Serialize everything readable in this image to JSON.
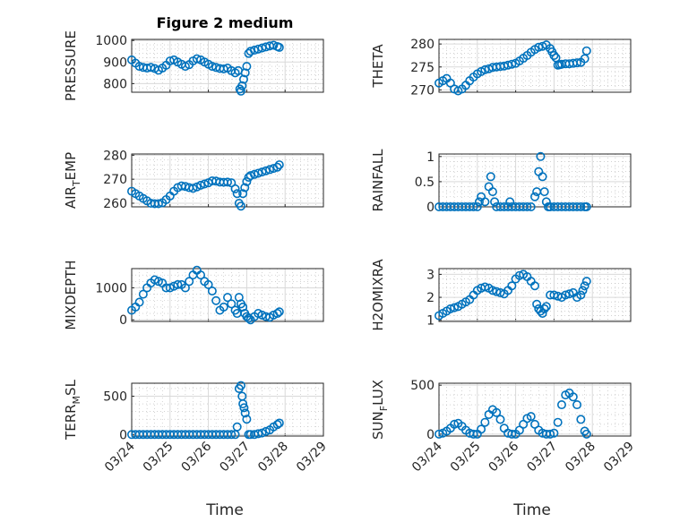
{
  "figure": {
    "title": "Figure 2 medium",
    "marker_color": "#0072bd",
    "x_label": "Time",
    "x_ticks": [
      "03/24",
      "03/25",
      "03/26",
      "03/27",
      "03/28",
      "03/29"
    ]
  },
  "chart_data": [
    {
      "type": "scatter",
      "ylabel": "PRESSURE",
      "xlim": [
        0,
        5
      ],
      "ylim": [
        760,
        1005
      ],
      "yticks": [
        800,
        900,
        1000
      ],
      "x": [
        0,
        0.1,
        0.2,
        0.3,
        0.4,
        0.5,
        0.6,
        0.7,
        0.8,
        0.9,
        1,
        1.1,
        1.2,
        1.3,
        1.4,
        1.5,
        1.6,
        1.7,
        1.8,
        1.9,
        2,
        2.1,
        2.2,
        2.3,
        2.4,
        2.5,
        2.6,
        2.7,
        2.78,
        2.82,
        2.85,
        2.88,
        2.92,
        2.96,
        3,
        3.05,
        3.1,
        3.2,
        3.3,
        3.4,
        3.5,
        3.6,
        3.7,
        3.8,
        3.85
      ],
      "y": [
        910,
        895,
        880,
        875,
        872,
        875,
        870,
        862,
        872,
        885,
        905,
        910,
        900,
        890,
        880,
        888,
        905,
        915,
        910,
        900,
        890,
        880,
        875,
        870,
        868,
        872,
        860,
        850,
        860,
        775,
        765,
        790,
        820,
        850,
        880,
        940,
        950,
        955,
        960,
        965,
        970,
        975,
        978,
        972,
        968
      ]
    },
    {
      "type": "scatter",
      "ylabel": "THETA",
      "xlim": [
        0,
        5
      ],
      "ylim": [
        269.5,
        281
      ],
      "yticks": [
        270,
        275,
        280
      ],
      "x": [
        0,
        0.1,
        0.2,
        0.3,
        0.4,
        0.5,
        0.6,
        0.7,
        0.8,
        0.9,
        1,
        1.1,
        1.2,
        1.3,
        1.4,
        1.5,
        1.6,
        1.7,
        1.8,
        1.9,
        2,
        2.1,
        2.2,
        2.3,
        2.4,
        2.5,
        2.6,
        2.7,
        2.8,
        2.9,
        2.95,
        3,
        3.05,
        3.1,
        3.15,
        3.2,
        3.3,
        3.4,
        3.5,
        3.6,
        3.7,
        3.8,
        3.85
      ],
      "y": [
        271.5,
        272,
        272.5,
        271.5,
        270.2,
        269.8,
        270.2,
        271,
        272,
        272.8,
        273.5,
        274,
        274.4,
        274.6,
        274.9,
        275,
        275.1,
        275.2,
        275.4,
        275.6,
        275.8,
        276.3,
        276.9,
        277.5,
        278.2,
        278.8,
        279.3,
        279.5,
        279.8,
        279,
        278.3,
        277.5,
        277,
        275.4,
        275.5,
        275.6,
        275.7,
        275.7,
        275.8,
        275.9,
        276,
        276.8,
        278.5
      ]
    },
    {
      "type": "scatter",
      "ylabel": "AIR_TEMP",
      "xlim": [
        0,
        5
      ],
      "ylim": [
        258.5,
        280.5
      ],
      "yticks": [
        260,
        270,
        280
      ],
      "x": [
        0,
        0.1,
        0.2,
        0.3,
        0.4,
        0.5,
        0.6,
        0.7,
        0.8,
        0.9,
        1,
        1.1,
        1.2,
        1.3,
        1.4,
        1.5,
        1.6,
        1.7,
        1.8,
        1.9,
        2,
        2.1,
        2.2,
        2.3,
        2.4,
        2.5,
        2.6,
        2.7,
        2.75,
        2.8,
        2.85,
        2.9,
        2.95,
        3,
        3.05,
        3.1,
        3.2,
        3.3,
        3.4,
        3.5,
        3.6,
        3.7,
        3.8,
        3.85
      ],
      "y": [
        265,
        264,
        263,
        262,
        261,
        260,
        259.8,
        259.8,
        260.2,
        261.5,
        263,
        265,
        266.5,
        267.2,
        267,
        266.5,
        266.2,
        266.8,
        267.5,
        268,
        268.5,
        269.3,
        269.2,
        268.8,
        268.7,
        268.8,
        268.5,
        266,
        264,
        260,
        258.8,
        264,
        266.5,
        269,
        270.8,
        271.5,
        272,
        272.5,
        273,
        273.5,
        274,
        274.5,
        275,
        276
      ]
    },
    {
      "type": "scatter",
      "ylabel": "RAINFALL",
      "xlim": [
        0,
        5
      ],
      "ylim": [
        0,
        1.05
      ],
      "yticks": [
        0,
        0.5,
        1
      ],
      "x": [
        0,
        0.1,
        0.2,
        0.3,
        0.4,
        0.5,
        0.6,
        0.7,
        0.8,
        0.9,
        1,
        1.05,
        1.1,
        1.2,
        1.3,
        1.35,
        1.4,
        1.45,
        1.5,
        1.6,
        1.7,
        1.8,
        1.85,
        1.9,
        2,
        2.1,
        2.2,
        2.3,
        2.4,
        2.5,
        2.55,
        2.6,
        2.65,
        2.7,
        2.75,
        2.8,
        2.85,
        2.9,
        3,
        3.1,
        3.2,
        3.3,
        3.4,
        3.5,
        3.6,
        3.7,
        3.8,
        3.85
      ],
      "y": [
        0,
        0,
        0,
        0,
        0,
        0,
        0,
        0,
        0,
        0,
        0,
        0.1,
        0.2,
        0.1,
        0.4,
        0.6,
        0.3,
        0.1,
        0,
        0,
        0,
        0,
        0.1,
        0,
        0,
        0,
        0,
        0,
        0,
        0.2,
        0.3,
        0.7,
        1,
        0.6,
        0.3,
        0.1,
        0,
        0,
        0,
        0,
        0,
        0,
        0,
        0,
        0,
        0,
        0,
        0
      ]
    },
    {
      "type": "scatter",
      "ylabel": "MIXDEPTH",
      "xlim": [
        0,
        5
      ],
      "ylim": [
        -50,
        1600
      ],
      "yticks": [
        0,
        1000
      ],
      "x": [
        0,
        0.1,
        0.2,
        0.3,
        0.4,
        0.5,
        0.6,
        0.7,
        0.8,
        0.9,
        1,
        1.1,
        1.2,
        1.3,
        1.4,
        1.5,
        1.6,
        1.7,
        1.8,
        1.9,
        2,
        2.1,
        2.2,
        2.3,
        2.4,
        2.5,
        2.6,
        2.7,
        2.75,
        2.8,
        2.85,
        2.9,
        2.95,
        3,
        3.05,
        3.1,
        3.2,
        3.3,
        3.4,
        3.5,
        3.6,
        3.7,
        3.8,
        3.85
      ],
      "y": [
        300,
        400,
        550,
        800,
        1000,
        1150,
        1250,
        1200,
        1150,
        1000,
        1000,
        1050,
        1100,
        1100,
        1000,
        1200,
        1400,
        1550,
        1400,
        1200,
        1100,
        900,
        600,
        300,
        400,
        700,
        500,
        300,
        200,
        700,
        500,
        400,
        200,
        100,
        50,
        0,
        100,
        200,
        150,
        100,
        80,
        150,
        200,
        250
      ]
    },
    {
      "type": "scatter",
      "ylabel": "H2OMIXRA",
      "xlim": [
        0,
        5
      ],
      "ylim": [
        0.95,
        3.25
      ],
      "yticks": [
        1,
        2,
        3
      ],
      "x": [
        0,
        0.1,
        0.2,
        0.3,
        0.4,
        0.5,
        0.6,
        0.7,
        0.8,
        0.9,
        1,
        1.1,
        1.2,
        1.3,
        1.4,
        1.5,
        1.6,
        1.7,
        1.8,
        1.9,
        2,
        2.1,
        2.2,
        2.3,
        2.4,
        2.5,
        2.55,
        2.6,
        2.65,
        2.7,
        2.75,
        2.8,
        2.9,
        3,
        3.1,
        3.2,
        3.3,
        3.4,
        3.5,
        3.6,
        3.7,
        3.75,
        3.8,
        3.85
      ],
      "y": [
        1.2,
        1.3,
        1.4,
        1.5,
        1.55,
        1.6,
        1.7,
        1.8,
        1.9,
        2.1,
        2.3,
        2.4,
        2.45,
        2.4,
        2.3,
        2.25,
        2.2,
        2.15,
        2.3,
        2.5,
        2.8,
        2.95,
        3,
        2.9,
        2.7,
        2.5,
        1.7,
        1.5,
        1.4,
        1.3,
        1.5,
        1.6,
        2.1,
        2.1,
        2.05,
        2.0,
        2.1,
        2.15,
        2.2,
        2.0,
        2.1,
        2.3,
        2.5,
        2.7
      ]
    },
    {
      "type": "scatter",
      "ylabel": "TERR_MSL",
      "xlim": [
        0,
        5
      ],
      "ylim": [
        -20,
        670
      ],
      "yticks": [
        0,
        500
      ],
      "x": [
        0,
        0.1,
        0.2,
        0.3,
        0.4,
        0.5,
        0.6,
        0.7,
        0.8,
        0.9,
        1,
        1.1,
        1.2,
        1.3,
        1.4,
        1.5,
        1.6,
        1.7,
        1.8,
        1.9,
        2,
        2.1,
        2.2,
        2.3,
        2.4,
        2.5,
        2.6,
        2.7,
        2.75,
        2.8,
        2.85,
        2.88,
        2.9,
        2.93,
        2.96,
        3,
        3.05,
        3.1,
        3.2,
        3.3,
        3.4,
        3.5,
        3.6,
        3.7,
        3.8,
        3.85
      ],
      "y": [
        0,
        0,
        0,
        0,
        0,
        0,
        0,
        0,
        0,
        0,
        0,
        0,
        0,
        0,
        0,
        0,
        0,
        0,
        0,
        0,
        0,
        0,
        0,
        0,
        0,
        0,
        0,
        0,
        100,
        600,
        640,
        500,
        400,
        350,
        280,
        200,
        0,
        0,
        0,
        10,
        20,
        40,
        60,
        100,
        130,
        150
      ]
    },
    {
      "type": "scatter",
      "ylabel": "SUN_FLUX",
      "xlim": [
        0,
        5
      ],
      "ylim": [
        -20,
        520
      ],
      "yticks": [
        0,
        500
      ],
      "x": [
        0,
        0.1,
        0.2,
        0.3,
        0.4,
        0.5,
        0.6,
        0.7,
        0.8,
        0.9,
        1,
        1.1,
        1.2,
        1.3,
        1.4,
        1.5,
        1.6,
        1.7,
        1.8,
        1.9,
        2,
        2.1,
        2.2,
        2.3,
        2.4,
        2.5,
        2.6,
        2.7,
        2.8,
        2.9,
        3,
        3.1,
        3.2,
        3.3,
        3.4,
        3.5,
        3.6,
        3.7,
        3.8,
        3.85
      ],
      "y": [
        0,
        10,
        30,
        60,
        100,
        110,
        80,
        40,
        10,
        0,
        0,
        50,
        120,
        200,
        250,
        220,
        150,
        60,
        10,
        0,
        0,
        40,
        100,
        160,
        180,
        100,
        40,
        10,
        0,
        0,
        10,
        120,
        300,
        400,
        420,
        380,
        300,
        150,
        30,
        0
      ]
    }
  ]
}
